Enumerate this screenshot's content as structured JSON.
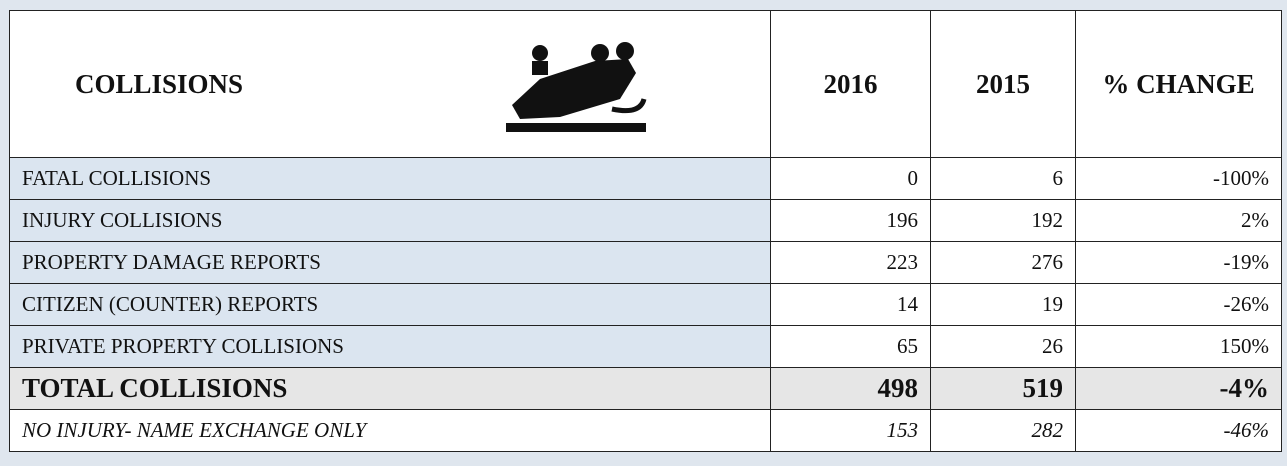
{
  "table": {
    "header": [
      "COLLISIONS",
      "2016",
      "2015",
      "% CHANGE"
    ],
    "rows": [
      [
        "FATAL COLLISIONS",
        "0",
        "6",
        "-100%"
      ],
      [
        "INJURY COLLISIONS",
        "196",
        "192",
        "2%"
      ],
      [
        "PROPERTY DAMAGE REPORTS",
        "223",
        "276",
        "-19%"
      ],
      [
        "CITIZEN (COUNTER) REPORTS",
        "14",
        "19",
        "-26%"
      ],
      [
        "PRIVATE PROPERTY COLLISIONS",
        "65",
        "26",
        "150%"
      ],
      [
        "TOTAL COLLISIONS",
        "498",
        "519",
        "-4%"
      ],
      [
        "NO INJURY- NAME EXCHANGE ONLY",
        "153",
        "282",
        "-46%"
      ]
    ]
  }
}
